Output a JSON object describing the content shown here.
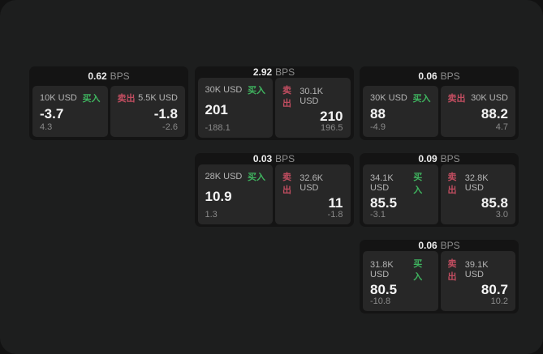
{
  "labels": {
    "buy": "买入",
    "sell": "卖出",
    "bps": "BPS"
  },
  "colors": {
    "buy": "#3fb45f",
    "sell": "#c14d60",
    "card_bg": "#141414",
    "panel_bg": "#272727",
    "page_bg": "#1d1e1e"
  },
  "cards": [
    {
      "row": 0,
      "col": 0,
      "bps": "0.62",
      "buy": {
        "amount": "10K USD",
        "price": "-3.7",
        "delta": "4.3"
      },
      "sell": {
        "amount": "5.5K USD",
        "price": "-1.8",
        "delta": "-2.6"
      }
    },
    {
      "row": 0,
      "col": 1,
      "bps": "2.92",
      "buy": {
        "amount": "30K USD",
        "price": "201",
        "delta": "-188.1"
      },
      "sell": {
        "amount": "30.1K USD",
        "price": "210",
        "delta": "196.5"
      }
    },
    {
      "row": 0,
      "col": 2,
      "bps": "0.06",
      "buy": {
        "amount": "30K USD",
        "price": "88",
        "delta": "-4.9"
      },
      "sell": {
        "amount": "30K USD",
        "price": "88.2",
        "delta": "4.7"
      }
    },
    {
      "row": 1,
      "col": 1,
      "bps": "0.03",
      "buy": {
        "amount": "28K USD",
        "price": "10.9",
        "delta": "1.3"
      },
      "sell": {
        "amount": "32.6K USD",
        "price": "11",
        "delta": "-1.8"
      }
    },
    {
      "row": 1,
      "col": 2,
      "bps": "0.09",
      "buy": {
        "amount": "34.1K USD",
        "price": "85.5",
        "delta": "-3.1"
      },
      "sell": {
        "amount": "32.8K USD",
        "price": "85.8",
        "delta": "3.0"
      }
    },
    {
      "row": 2,
      "col": 2,
      "bps": "0.06",
      "buy": {
        "amount": "31.8K USD",
        "price": "80.5",
        "delta": "-10.8"
      },
      "sell": {
        "amount": "39.1K USD",
        "price": "80.7",
        "delta": "10.2"
      }
    }
  ]
}
